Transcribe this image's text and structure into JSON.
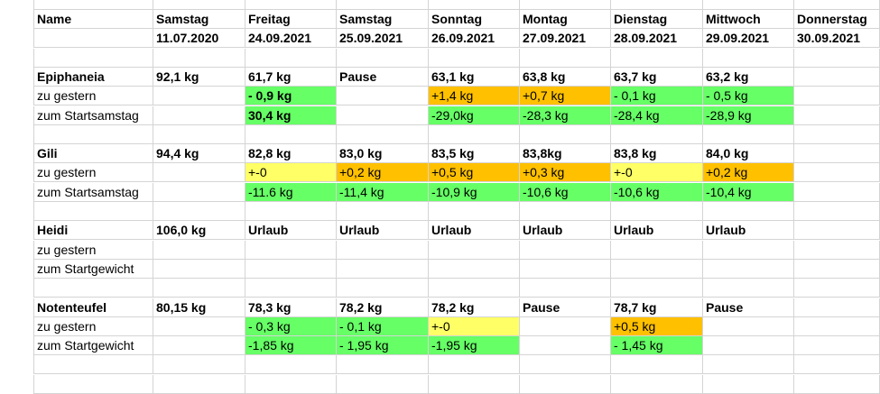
{
  "colors": {
    "green": "#66ff66",
    "orange": "#ffc000",
    "yellow": "#ffff66",
    "gridline": "#d4d4d4"
  },
  "rows": [
    {
      "bold": true,
      "cells": [
        {
          "text": "Name"
        },
        {
          "text": "Samstag"
        },
        {
          "text": "Freitag"
        },
        {
          "text": "Samstag"
        },
        {
          "text": "Sonntag"
        },
        {
          "text": "Montag"
        },
        {
          "text": "Dienstag"
        },
        {
          "text": "Mittwoch"
        },
        {
          "text": "Donnerstag"
        }
      ]
    },
    {
      "bold": true,
      "cells": [
        {
          "text": ""
        },
        {
          "text": "11.07.2020"
        },
        {
          "text": "24.09.2021"
        },
        {
          "text": "25.09.2021"
        },
        {
          "text": "26.09.2021"
        },
        {
          "text": "27.09.2021"
        },
        {
          "text": "28.09.2021"
        },
        {
          "text": "29.09.2021"
        },
        {
          "text": "30.09.2021"
        }
      ]
    },
    {
      "bold": false,
      "cells": []
    },
    {
      "bold": true,
      "cells": [
        {
          "text": "Epiphaneia"
        },
        {
          "text": "92,1 kg"
        },
        {
          "text": "61,7 kg"
        },
        {
          "text": "Pause"
        },
        {
          "text": "63,1 kg"
        },
        {
          "text": "63,8 kg"
        },
        {
          "text": "63,7 kg"
        },
        {
          "text": "63,2 kg"
        },
        {
          "text": ""
        }
      ]
    },
    {
      "bold": false,
      "cells": [
        {
          "text": "zu gestern"
        },
        {
          "text": ""
        },
        {
          "text": "- 0,9 kg",
          "fill": "green",
          "bold": true
        },
        {
          "text": ""
        },
        {
          "text": "+1,4 kg",
          "fill": "orange"
        },
        {
          "text": "+0,7 kg",
          "fill": "orange"
        },
        {
          "text": "- 0,1 kg",
          "fill": "green"
        },
        {
          "text": "- 0,5 kg",
          "fill": "green"
        },
        {
          "text": ""
        }
      ]
    },
    {
      "bold": false,
      "cells": [
        {
          "text": "zum Startsamstag"
        },
        {
          "text": ""
        },
        {
          "text": "30,4 kg",
          "fill": "green",
          "bold": true
        },
        {
          "text": ""
        },
        {
          "text": "-29,0kg",
          "fill": "green"
        },
        {
          "text": "-28,3 kg",
          "fill": "green"
        },
        {
          "text": "-28,4 kg",
          "fill": "green"
        },
        {
          "text": "-28,9 kg",
          "fill": "green"
        },
        {
          "text": ""
        }
      ]
    },
    {
      "bold": false,
      "cells": []
    },
    {
      "bold": true,
      "cells": [
        {
          "text": "Gili"
        },
        {
          "text": "94,4 kg"
        },
        {
          "text": "82,8 kg"
        },
        {
          "text": "83,0 kg"
        },
        {
          "text": "83,5 kg"
        },
        {
          "text": "83,8kg"
        },
        {
          "text": "83,8 kg"
        },
        {
          "text": "84,0 kg"
        },
        {
          "text": ""
        }
      ]
    },
    {
      "bold": false,
      "cells": [
        {
          "text": "zu gestern"
        },
        {
          "text": ""
        },
        {
          "text": "+-0",
          "fill": "yellow"
        },
        {
          "text": "+0,2 kg",
          "fill": "orange"
        },
        {
          "text": "+0,5 kg",
          "fill": "orange"
        },
        {
          "text": "+0,3 kg",
          "fill": "orange"
        },
        {
          "text": "+-0",
          "fill": "yellow"
        },
        {
          "text": "+0,2 kg",
          "fill": "orange"
        },
        {
          "text": ""
        }
      ]
    },
    {
      "bold": false,
      "cells": [
        {
          "text": "zum Startsamstag"
        },
        {
          "text": ""
        },
        {
          "text": "-11.6 kg",
          "fill": "green"
        },
        {
          "text": "-11,4 kg",
          "fill": "green"
        },
        {
          "text": "-10,9 kg",
          "fill": "green"
        },
        {
          "text": "-10,6 kg",
          "fill": "green"
        },
        {
          "text": "-10,6 kg",
          "fill": "green"
        },
        {
          "text": "-10,4 kg",
          "fill": "green"
        },
        {
          "text": ""
        }
      ]
    },
    {
      "bold": false,
      "cells": []
    },
    {
      "bold": true,
      "cells": [
        {
          "text": "Heidi"
        },
        {
          "text": "106,0 kg"
        },
        {
          "text": "Urlaub"
        },
        {
          "text": "Urlaub"
        },
        {
          "text": "Urlaub"
        },
        {
          "text": "Urlaub"
        },
        {
          "text": "Urlaub"
        },
        {
          "text": "Urlaub"
        },
        {
          "text": ""
        }
      ]
    },
    {
      "bold": false,
      "cells": [
        {
          "text": "zu gestern"
        },
        {
          "text": ""
        },
        {
          "text": ""
        },
        {
          "text": ""
        },
        {
          "text": ""
        },
        {
          "text": ""
        },
        {
          "text": ""
        },
        {
          "text": ""
        },
        {
          "text": ""
        }
      ]
    },
    {
      "bold": false,
      "cells": [
        {
          "text": "zum Startgewicht"
        },
        {
          "text": ""
        },
        {
          "text": ""
        },
        {
          "text": ""
        },
        {
          "text": ""
        },
        {
          "text": ""
        },
        {
          "text": ""
        },
        {
          "text": ""
        },
        {
          "text": ""
        }
      ]
    },
    {
      "bold": false,
      "cells": []
    },
    {
      "bold": true,
      "cells": [
        {
          "text": "Notenteufel"
        },
        {
          "text": "80,15 kg"
        },
        {
          "text": "78,3 kg"
        },
        {
          "text": "78,2 kg"
        },
        {
          "text": "78,2 kg"
        },
        {
          "text": "Pause"
        },
        {
          "text": "78,7 kg"
        },
        {
          "text": "Pause"
        },
        {
          "text": ""
        }
      ]
    },
    {
      "bold": false,
      "cells": [
        {
          "text": "zu gestern"
        },
        {
          "text": ""
        },
        {
          "text": "- 0,3 kg",
          "fill": "green"
        },
        {
          "text": "- 0,1 kg",
          "fill": "green"
        },
        {
          "text": "+-0",
          "fill": "yellow"
        },
        {
          "text": ""
        },
        {
          "text": "+0,5 kg",
          "fill": "orange"
        },
        {
          "text": ""
        },
        {
          "text": ""
        }
      ]
    },
    {
      "bold": false,
      "cells": [
        {
          "text": "zum Startgewicht"
        },
        {
          "text": ""
        },
        {
          "text": "-1,85 kg",
          "fill": "green"
        },
        {
          "text": "- 1,95 kg",
          "fill": "green"
        },
        {
          "text": "-1,95 kg",
          "fill": "green"
        },
        {
          "text": ""
        },
        {
          "text": "- 1,45 kg",
          "fill": "green"
        },
        {
          "text": ""
        },
        {
          "text": ""
        }
      ]
    },
    {
      "bold": false,
      "cells": []
    },
    {
      "bold": false,
      "cells": []
    }
  ]
}
